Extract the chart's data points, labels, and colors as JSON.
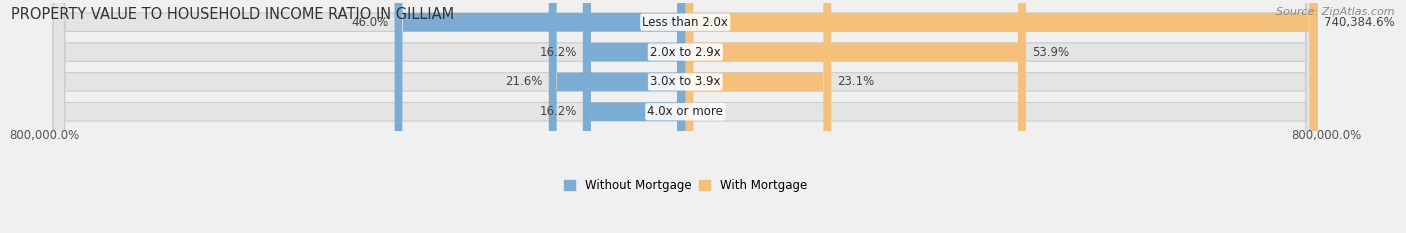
{
  "title": "PROPERTY VALUE TO HOUSEHOLD INCOME RATIO IN GILLIAM",
  "source": "Source: ZipAtlas.com",
  "categories": [
    "Less than 2.0x",
    "2.0x to 2.9x",
    "3.0x to 3.9x",
    "4.0x or more"
  ],
  "without_mortgage": [
    46.0,
    16.2,
    21.6,
    16.2
  ],
  "with_mortgage": [
    740384.6,
    53.9,
    23.1,
    0.0
  ],
  "without_mortgage_color": "#7badd4",
  "with_mortgage_color": "#f5c07a",
  "background_color": "#f0f0f0",
  "bar_bg_color": "#e4e4e4",
  "axis_label_left": "800,000.0%",
  "axis_label_right": "800,000.0%",
  "legend_labels": [
    "Without Mortgage",
    "With Mortgage"
  ],
  "title_fontsize": 10.5,
  "label_fontsize": 8.5,
  "source_fontsize": 8,
  "max_val": 800000.0
}
